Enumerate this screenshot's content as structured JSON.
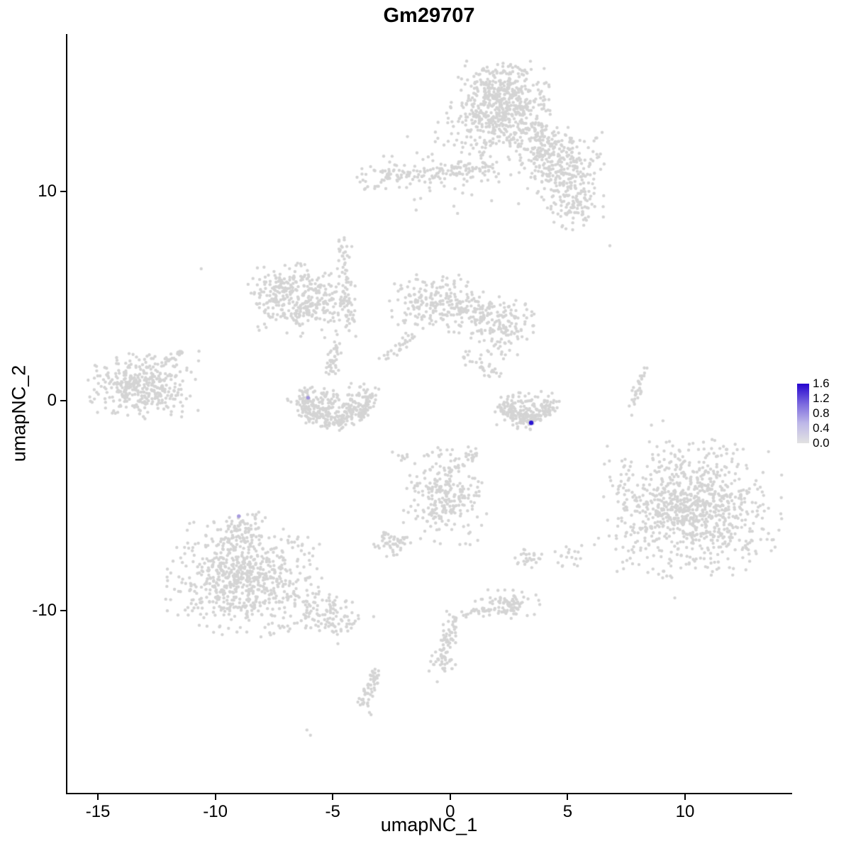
{
  "chart_data": {
    "type": "scatter",
    "title": "Gm29707",
    "xlabel": "umapNC_1",
    "ylabel": "umapNC_2",
    "xlim": [
      -16.3,
      14.5
    ],
    "ylim": [
      -18.7,
      17.5
    ],
    "x_ticks": [
      -15,
      -10,
      -5,
      0,
      5,
      10
    ],
    "y_ticks": [
      10,
      0,
      -10
    ],
    "grid": false,
    "point_color": "#d4d4d4",
    "point_radius": 2.2,
    "seed": 42,
    "legend": {
      "position": "right",
      "ticks": [
        "1.6",
        "1.2",
        "0.8",
        "0.4",
        "0.0"
      ],
      "min": 0.0,
      "max": 1.6,
      "low_color": "#e2e2e2",
      "high_color": "#2603cf",
      "gradient": [
        "#e2e2e2",
        "#beb8e8",
        "#7a68de",
        "#2603cf"
      ]
    },
    "clusters": [
      {
        "name": "top-main",
        "type": "gauss",
        "cx": 2.1,
        "cy": 14.3,
        "sx": 0.95,
        "sy": 0.85,
        "n": 520
      },
      {
        "name": "top-main-spray",
        "type": "gauss",
        "cx": 1.9,
        "cy": 12.5,
        "sx": 1.1,
        "sy": 0.55,
        "n": 90
      },
      {
        "name": "top-main-tail",
        "type": "line",
        "x1": 2.9,
        "y1": 13.4,
        "x2": 4.3,
        "y2": 12.2,
        "jitter": 0.45,
        "n": 80
      },
      {
        "name": "top-right-blob",
        "type": "gauss",
        "cx": 4.6,
        "cy": 11.4,
        "sx": 0.85,
        "sy": 0.7,
        "n": 270
      },
      {
        "name": "top-right-lower",
        "type": "gauss",
        "cx": 5.3,
        "cy": 9.4,
        "sx": 0.55,
        "sy": 0.65,
        "n": 110
      },
      {
        "name": "top-band",
        "type": "line",
        "x1": -3.6,
        "y1": 10.7,
        "x2": 1.9,
        "y2": 11.1,
        "jitter": 0.28,
        "n": 150
      },
      {
        "name": "top-band-halo",
        "type": "gauss",
        "cx": -0.5,
        "cy": 11.3,
        "sx": 1.6,
        "sy": 0.55,
        "n": 40
      },
      {
        "name": "below-band-sparse",
        "type": "gauss",
        "cx": 0.0,
        "cy": 10.0,
        "sx": 1.5,
        "sy": 0.45,
        "n": 16
      },
      {
        "name": "mid-left",
        "type": "gauss",
        "cx": -6.3,
        "cy": 4.8,
        "sx": 1.05,
        "sy": 0.75,
        "n": 330
      },
      {
        "name": "mid-left-arm",
        "type": "line",
        "x1": -7.9,
        "y1": 5.8,
        "x2": -6.6,
        "y2": 5.0,
        "jitter": 0.3,
        "n": 40
      },
      {
        "name": "mid-central-left",
        "type": "gauss",
        "cx": -0.6,
        "cy": 4.7,
        "sx": 0.9,
        "sy": 0.65,
        "n": 220
      },
      {
        "name": "mid-central-right",
        "type": "gauss",
        "cx": 2.2,
        "cy": 3.6,
        "sx": 0.7,
        "sy": 0.7,
        "n": 140
      },
      {
        "name": "mid-central-bridge",
        "type": "line",
        "x1": 0.4,
        "y1": 4.4,
        "x2": 1.8,
        "y2": 3.9,
        "jitter": 0.3,
        "n": 40
      },
      {
        "name": "central-strand-left",
        "type": "line",
        "x1": -1.5,
        "y1": 3.3,
        "x2": -2.7,
        "y2": 2.0,
        "jitter": 0.15,
        "n": 28
      },
      {
        "name": "central-strand-right",
        "type": "line",
        "x1": 0.6,
        "y1": 2.2,
        "x2": 2.0,
        "y2": 1.2,
        "jitter": 0.15,
        "n": 30
      },
      {
        "name": "vertical-strand",
        "type": "line",
        "x1": -4.55,
        "y1": 7.7,
        "x2": -4.35,
        "y2": 3.6,
        "jitter": 0.18,
        "n": 65
      },
      {
        "name": "u-chain",
        "type": "line",
        "x1": -4.75,
        "y1": 2.9,
        "x2": -5.05,
        "y2": 1.35,
        "jitter": 0.18,
        "n": 40
      },
      {
        "name": "far-left",
        "type": "gauss",
        "cx": -13.2,
        "cy": 0.7,
        "sx": 1.05,
        "sy": 0.7,
        "n": 380
      },
      {
        "name": "far-left-tail",
        "type": "line",
        "x1": -12.3,
        "y1": 1.7,
        "x2": -11.5,
        "y2": 2.4,
        "jitter": 0.15,
        "n": 22
      },
      {
        "name": "u-cluster-rim",
        "type": "arc",
        "cx": -4.9,
        "cy": 0.9,
        "rx": 1.55,
        "ry": 1.9,
        "a1": 195,
        "a2": 345,
        "jitter": 0.22,
        "n": 220
      },
      {
        "name": "u-cluster-fill",
        "type": "gauss",
        "cx": -5.1,
        "cy": -0.2,
        "sx": 0.8,
        "sy": 0.45,
        "n": 140
      },
      {
        "name": "right-u-rim",
        "type": "arc",
        "cx": 3.3,
        "cy": 0.5,
        "rx": 1.05,
        "ry": 1.5,
        "a1": 195,
        "a2": 345,
        "jitter": 0.2,
        "n": 150
      },
      {
        "name": "right-u-fill",
        "type": "gauss",
        "cx": 3.3,
        "cy": -0.3,
        "sx": 0.6,
        "sy": 0.4,
        "n": 90
      },
      {
        "name": "right-diagonal",
        "type": "line",
        "x1": 7.7,
        "y1": -0.3,
        "x2": 8.3,
        "y2": 1.4,
        "jitter": 0.12,
        "n": 30
      },
      {
        "name": "right-big",
        "type": "gauss",
        "cx": 10.3,
        "cy": -5.1,
        "sx": 1.6,
        "sy": 1.4,
        "n": 850
      },
      {
        "name": "right-big-halo",
        "type": "gauss",
        "cx": 10.2,
        "cy": -5.0,
        "sx": 2.2,
        "sy": 1.9,
        "n": 70
      },
      {
        "name": "center-low",
        "type": "gauss",
        "cx": -0.2,
        "cy": -4.5,
        "sx": 0.75,
        "sy": 1.0,
        "n": 260
      },
      {
        "name": "center-low-arm",
        "type": "line",
        "x1": 0.3,
        "y1": -3.2,
        "x2": 1.1,
        "y2": -2.4,
        "jitter": 0.18,
        "n": 22
      },
      {
        "name": "bottom-left",
        "type": "gauss",
        "cx": -8.8,
        "cy": -8.4,
        "sx": 1.4,
        "sy": 1.2,
        "n": 700
      },
      {
        "name": "bottom-left-tail",
        "type": "line",
        "x1": -6.2,
        "y1": -9.6,
        "x2": -4.4,
        "y2": -10.7,
        "jitter": 0.5,
        "n": 120
      },
      {
        "name": "bottom-left-top",
        "type": "gauss",
        "cx": -8.9,
        "cy": -6.2,
        "sx": 0.5,
        "sy": 0.4,
        "n": 70
      },
      {
        "name": "small-left-blob",
        "type": "gauss",
        "cx": -2.55,
        "cy": -6.85,
        "sx": 0.35,
        "sy": 0.3,
        "n": 50
      },
      {
        "name": "small-right-blob",
        "type": "gauss",
        "cx": 3.4,
        "cy": -7.5,
        "sx": 0.3,
        "sy": 0.25,
        "n": 26
      },
      {
        "name": "small-right-blob2",
        "type": "gauss",
        "cx": 5.0,
        "cy": -7.5,
        "sx": 0.25,
        "sy": 0.3,
        "n": 18
      },
      {
        "name": "bottom-center-blob",
        "type": "gauss",
        "cx": 2.4,
        "cy": -9.7,
        "sx": 0.65,
        "sy": 0.3,
        "n": 90
      },
      {
        "name": "bottom-strand",
        "type": "line",
        "x1": 0.25,
        "y1": -10.3,
        "x2": -0.35,
        "y2": -12.3,
        "jitter": 0.18,
        "n": 60
      },
      {
        "name": "bottom-strand-hook",
        "type": "line",
        "x1": 0.5,
        "y1": -10.15,
        "x2": 1.55,
        "y2": -9.9,
        "jitter": 0.15,
        "n": 22
      },
      {
        "name": "bottom-strand-blob",
        "type": "gauss",
        "cx": -0.4,
        "cy": -12.6,
        "sx": 0.3,
        "sy": 0.25,
        "n": 25
      },
      {
        "name": "lower-left-strand",
        "type": "line",
        "x1": -3.15,
        "y1": -12.9,
        "x2": -3.75,
        "y2": -14.7,
        "jitter": 0.16,
        "n": 55
      },
      {
        "name": "mini-cluster-left",
        "type": "gauss",
        "cx": -2.1,
        "cy": -2.7,
        "sx": 0.18,
        "sy": 0.15,
        "n": 8
      }
    ],
    "singles": [
      [
        -10.6,
        6.3
      ],
      [
        6.8,
        7.4
      ],
      [
        5.6,
        -6.9
      ],
      [
        -6.1,
        -15.7
      ],
      [
        -5.95,
        -15.95
      ],
      [
        -0.55,
        -13.4
      ]
    ],
    "expressed_cells": [
      {
        "x": -6.05,
        "y": 0.15,
        "value": 0.5,
        "color": "#a093dd",
        "r": 2.7
      },
      {
        "x": 3.45,
        "y": -1.05,
        "value": 1.6,
        "color": "#2b16d2",
        "r": 3.2
      },
      {
        "x": -9.0,
        "y": -5.5,
        "value": 0.5,
        "color": "#a79bdf",
        "r": 2.7
      }
    ]
  }
}
